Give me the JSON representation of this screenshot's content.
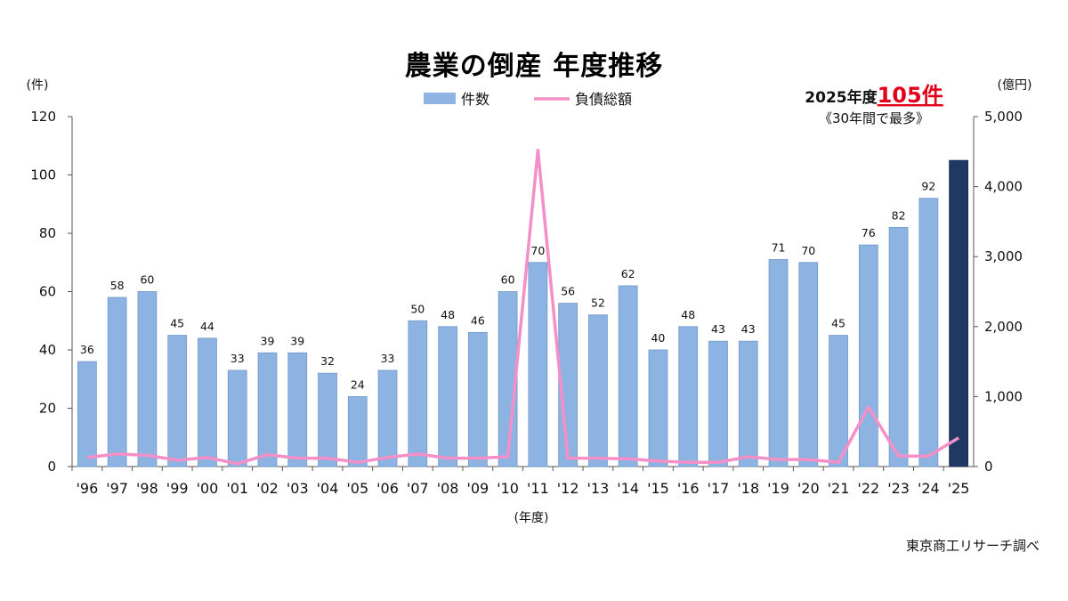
{
  "chart_data": {
    "type": "bar",
    "title": "農業の倒産 年度推移",
    "xlabel": "(年度)",
    "ylabel_left": "(件)",
    "ylabel_right": "(億円)",
    "categories": [
      "'96",
      "'97",
      "'98",
      "'99",
      "'00",
      "'01",
      "'02",
      "'03",
      "'04",
      "'05",
      "'06",
      "'07",
      "'08",
      "'09",
      "'10",
      "'11",
      "'12",
      "'13",
      "'14",
      "'15",
      "'16",
      "'17",
      "'18",
      "'19",
      "'20",
      "'21",
      "'22",
      "'23",
      "'24",
      "'25"
    ],
    "ylim_left": [
      0,
      120
    ],
    "yticks_left": [
      "0",
      "20",
      "40",
      "60",
      "80",
      "100",
      "120"
    ],
    "ylim_right": [
      0,
      5000
    ],
    "yticks_right": [
      "0",
      "1,000",
      "2,000",
      "3,000",
      "4,000",
      "5,000"
    ],
    "series": [
      {
        "name": "件数",
        "type": "bar",
        "axis": "left",
        "color": "#8db3e2",
        "highlight_color": "#1f3864",
        "values": [
          36,
          58,
          60,
          45,
          44,
          33,
          39,
          39,
          32,
          24,
          33,
          50,
          48,
          46,
          60,
          70,
          56,
          52,
          62,
          40,
          48,
          43,
          43,
          71,
          70,
          45,
          76,
          82,
          92,
          105
        ],
        "data_labels": [
          "36",
          "58",
          "60",
          "45",
          "44",
          "33",
          "39",
          "39",
          "32",
          "24",
          "33",
          "50",
          "48",
          "46",
          "60",
          "70",
          "56",
          "52",
          "62",
          "40",
          "48",
          "43",
          "43",
          "71",
          "70",
          "45",
          "76",
          "82",
          "92",
          ""
        ]
      },
      {
        "name": "負債総額",
        "type": "line",
        "axis": "right",
        "color": "#f48fc8",
        "values": [
          130,
          180,
          160,
          90,
          130,
          40,
          170,
          120,
          120,
          60,
          130,
          180,
          120,
          120,
          140,
          4520,
          120,
          120,
          110,
          80,
          60,
          60,
          140,
          100,
          100,
          60,
          850,
          150,
          150,
          410
        ]
      }
    ],
    "legend_position": "top",
    "grid": false
  },
  "highlight": {
    "prefix": "2025年度",
    "value": "105件",
    "note": "《30年間で最多》"
  },
  "source": "東京商工リサーチ調べ"
}
